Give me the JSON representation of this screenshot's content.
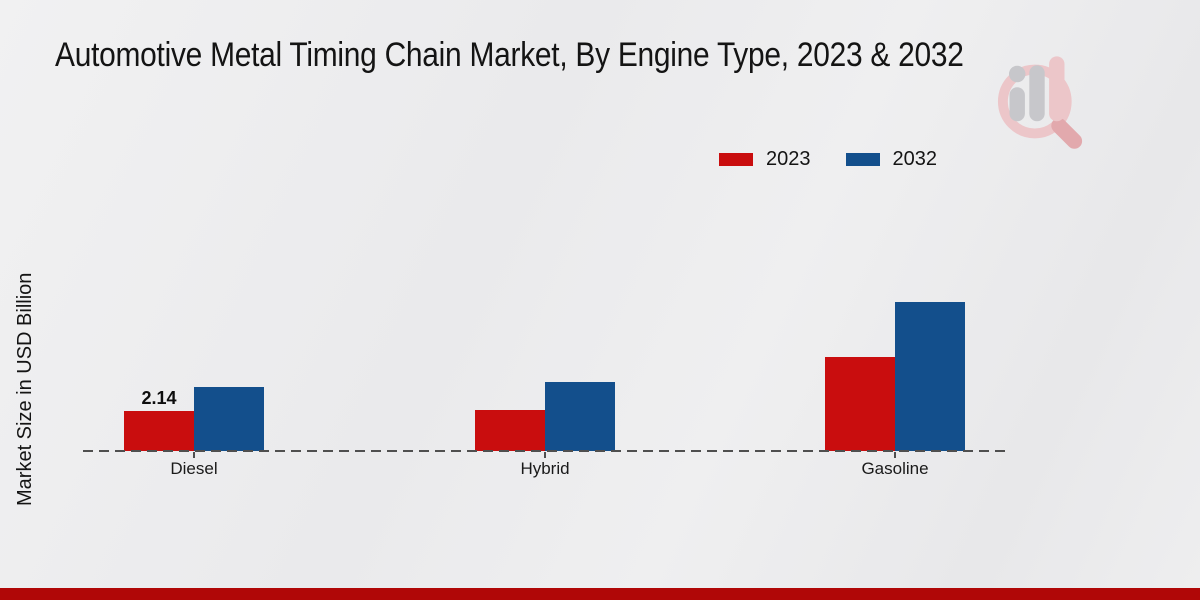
{
  "chart_data": {
    "type": "bar",
    "title": "Automotive Metal Timing Chain Market, By Engine Type, 2023 & 2032",
    "ylabel": "Market Size in USD Billion",
    "categories": [
      "Diesel",
      "Hybrid",
      "Gasoline"
    ],
    "series": [
      {
        "name": "2023",
        "color": "#c90d0e",
        "values": [
          2.14,
          2.2,
          5.05
        ],
        "labels": [
          "2.14",
          "",
          ""
        ]
      },
      {
        "name": "2032",
        "color": "#134f8c",
        "values": [
          3.4,
          3.7,
          7.95
        ],
        "labels": [
          "",
          "",
          ""
        ]
      }
    ],
    "value_labels_shown": [
      "2.14"
    ],
    "legend_position": "top-right",
    "grid": false,
    "axis": {
      "baseline_style": "dashed",
      "baseline_color": "#4f4f4f",
      "y_axis_ticks_visible": false
    }
  },
  "footer": {
    "accent_color": "#b00707"
  },
  "watermark": {
    "icon": "magnifier-bar-chart-logo",
    "ring_color": "#ecc6c9",
    "bars_color": "#c7c7cb"
  }
}
